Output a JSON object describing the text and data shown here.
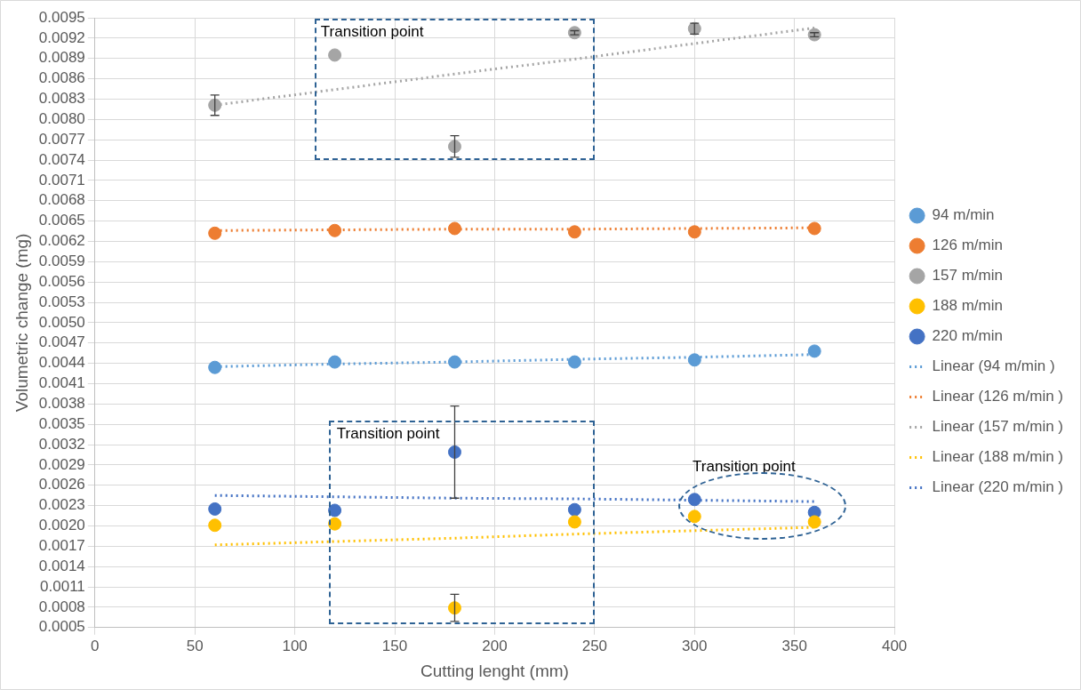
{
  "chart_data": {
    "type": "scatter",
    "xlabel": "Cutting lenght (mm)",
    "ylabel": "Volumetric change (mg)",
    "x": [
      60,
      120,
      180,
      240,
      300,
      360
    ],
    "xlim": [
      0,
      400
    ],
    "xticks": [
      0,
      50,
      100,
      150,
      200,
      250,
      300,
      350,
      400
    ],
    "ylim": [
      0.0005,
      0.0095
    ],
    "yticks": [
      0.0005,
      0.0008,
      0.0011,
      0.0014,
      0.0017,
      {
        "value": 0.002,
        "label": "0.0020"
      },
      0.0023,
      0.0026,
      0.0029,
      0.0032,
      0.0035,
      0.0038,
      0.0041,
      0.0044,
      0.0047,
      {
        "value": 0.005,
        "label": "0.0050"
      },
      0.0053,
      0.0056,
      0.0059,
      0.0062,
      0.0065,
      0.0068,
      0.0071,
      0.0074,
      0.0077,
      {
        "value": 0.008,
        "label": "0.0080"
      },
      0.0083,
      0.0086,
      0.0089,
      0.0092,
      0.0095
    ],
    "grid": true,
    "legend": "right",
    "marker": "circle",
    "series": [
      {
        "name": "94 m/min",
        "color": "#5b9bd5",
        "values": [
          0.00434,
          0.00442,
          0.00442,
          0.00442,
          0.00445,
          0.00458
        ]
      },
      {
        "name": "126 m/min",
        "color": "#ed7d31",
        "values": [
          0.00632,
          0.00636,
          0.00639,
          0.00634,
          0.00634,
          0.00639
        ]
      },
      {
        "name": "157 m/min",
        "color": "#a5a5a5",
        "values": [
          0.00821,
          0.00895,
          0.0076,
          0.00928,
          0.00934,
          0.00925
        ],
        "errors": [
          0.00015,
          null,
          0.00016,
          3e-05,
          8e-05,
          3e-05
        ]
      },
      {
        "name": "188 m/min",
        "color": "#ffc000",
        "values": [
          0.00201,
          0.00203,
          0.00079,
          0.00206,
          0.00214,
          0.00206
        ],
        "errors": [
          null,
          null,
          0.0002,
          null,
          null,
          null
        ]
      },
      {
        "name": "220 m/min",
        "color": "#4472c4",
        "values": [
          0.00225,
          0.00223,
          0.00309,
          0.00224,
          0.00239,
          0.0022
        ],
        "errors": [
          null,
          null,
          0.00068,
          null,
          null,
          null
        ]
      },
      {
        "name": "Linear (94 m/min )",
        "type": "line",
        "line_style": "dotted",
        "marker": "none",
        "color": "#5b9bd5",
        "values": [
          0.00435,
          0.00439,
          0.00442,
          0.00446,
          0.00449,
          0.00453
        ]
      },
      {
        "name": "Linear (126 m/min )",
        "type": "line",
        "line_style": "dotted",
        "marker": "none",
        "color": "#ed7d31",
        "values": [
          0.00636,
          0.00637,
          0.00638,
          0.00638,
          0.00639,
          0.0064
        ]
      },
      {
        "name": "Linear (157 m/min )",
        "type": "line",
        "line_style": "dotted",
        "marker": "none",
        "color": "#a5a5a5",
        "values": [
          0.00821,
          0.00844,
          0.00867,
          0.00889,
          0.00912,
          0.00935
        ]
      },
      {
        "name": "Linear (188 m/min )",
        "type": "line",
        "line_style": "dotted",
        "marker": "none",
        "color": "#ffc000",
        "values": [
          0.00172,
          0.00177,
          0.00182,
          0.00188,
          0.00193,
          0.00198
        ]
      },
      {
        "name": "Linear (220 m/min )",
        "type": "line",
        "line_style": "dotted",
        "marker": "none",
        "color": "#4472c4",
        "values": [
          0.00245,
          0.00243,
          0.00241,
          0.0024,
          0.00238,
          0.00236
        ]
      }
    ],
    "annotations": [
      "Transition point",
      "Transition point",
      "Transition point"
    ]
  }
}
